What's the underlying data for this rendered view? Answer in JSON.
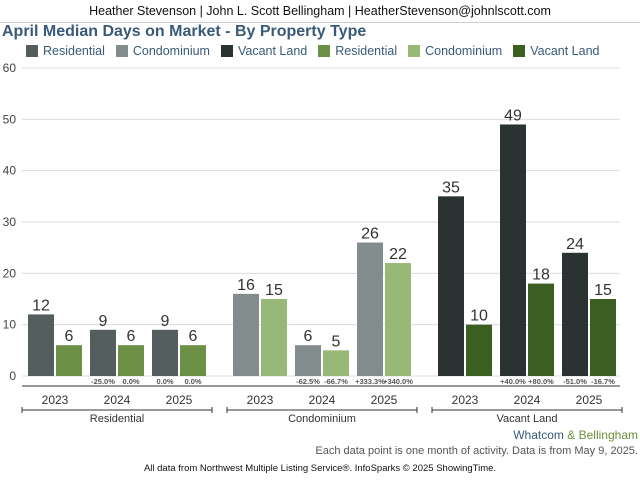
{
  "header": {
    "agent_line": "Heather Stevenson | John L. Scott Bellingham | HeatherStevenson@johnlscott.com"
  },
  "footer": {
    "brand_part1": "Whatcom",
    "brand_amp": "&",
    "brand_part2": "Bellingham",
    "note": "Each data point is one month of activity. Data is from May 9, 2025.",
    "source": "All data from Northwest Multiple Listing Service®. InfoSparks © 2025 ShowingTime."
  },
  "chart_data": {
    "type": "bar",
    "title": "April Median Days on Market - By Property Type",
    "ylim": [
      0,
      60
    ],
    "yticks": [
      0,
      10,
      20,
      30,
      40,
      50,
      60
    ],
    "grid": true,
    "legend_position": "top",
    "legend": [
      {
        "label": "Residential",
        "color": "#555e5e"
      },
      {
        "label": "Condominium",
        "color": "#828c8c"
      },
      {
        "label": "Vacant Land",
        "color": "#2a3232"
      },
      {
        "label": "Residential",
        "color": "#6a8f45"
      },
      {
        "label": "Condominium",
        "color": "#98b878"
      },
      {
        "label": "Vacant Land",
        "color": "#3a5f20"
      }
    ],
    "groups": [
      {
        "name": "Residential",
        "years": [
          {
            "year": "2023",
            "dark": 12,
            "green": 6,
            "pct_dark": "",
            "pct_green": ""
          },
          {
            "year": "2024",
            "dark": 9,
            "green": 6,
            "pct_dark": "-25.0%",
            "pct_green": "0.0%"
          },
          {
            "year": "2025",
            "dark": 9,
            "green": 6,
            "pct_dark": "0.0%",
            "pct_green": "0.0%"
          }
        ],
        "dark_color": "#555e5e",
        "green_color": "#6a8f45"
      },
      {
        "name": "Condominium",
        "years": [
          {
            "year": "2023",
            "dark": 16,
            "green": 15,
            "pct_dark": "",
            "pct_green": ""
          },
          {
            "year": "2024",
            "dark": 6,
            "green": 5,
            "pct_dark": "-62.5%",
            "pct_green": "-66.7%"
          },
          {
            "year": "2025",
            "dark": 26,
            "green": 22,
            "pct_dark": "+333.3%",
            "pct_green": "+340.0%"
          }
        ],
        "dark_color": "#828c8c",
        "green_color": "#98b878"
      },
      {
        "name": "Vacant Land",
        "years": [
          {
            "year": "2023",
            "dark": 35,
            "green": 10,
            "pct_dark": "",
            "pct_green": ""
          },
          {
            "year": "2024",
            "dark": 49,
            "green": 18,
            "pct_dark": "+40.0%",
            "pct_green": "+80.0%"
          },
          {
            "year": "2025",
            "dark": 24,
            "green": 15,
            "pct_dark": "-51.0%",
            "pct_green": "-16.7%"
          }
        ],
        "dark_color": "#2a3232",
        "green_color": "#3a5f20"
      }
    ]
  }
}
